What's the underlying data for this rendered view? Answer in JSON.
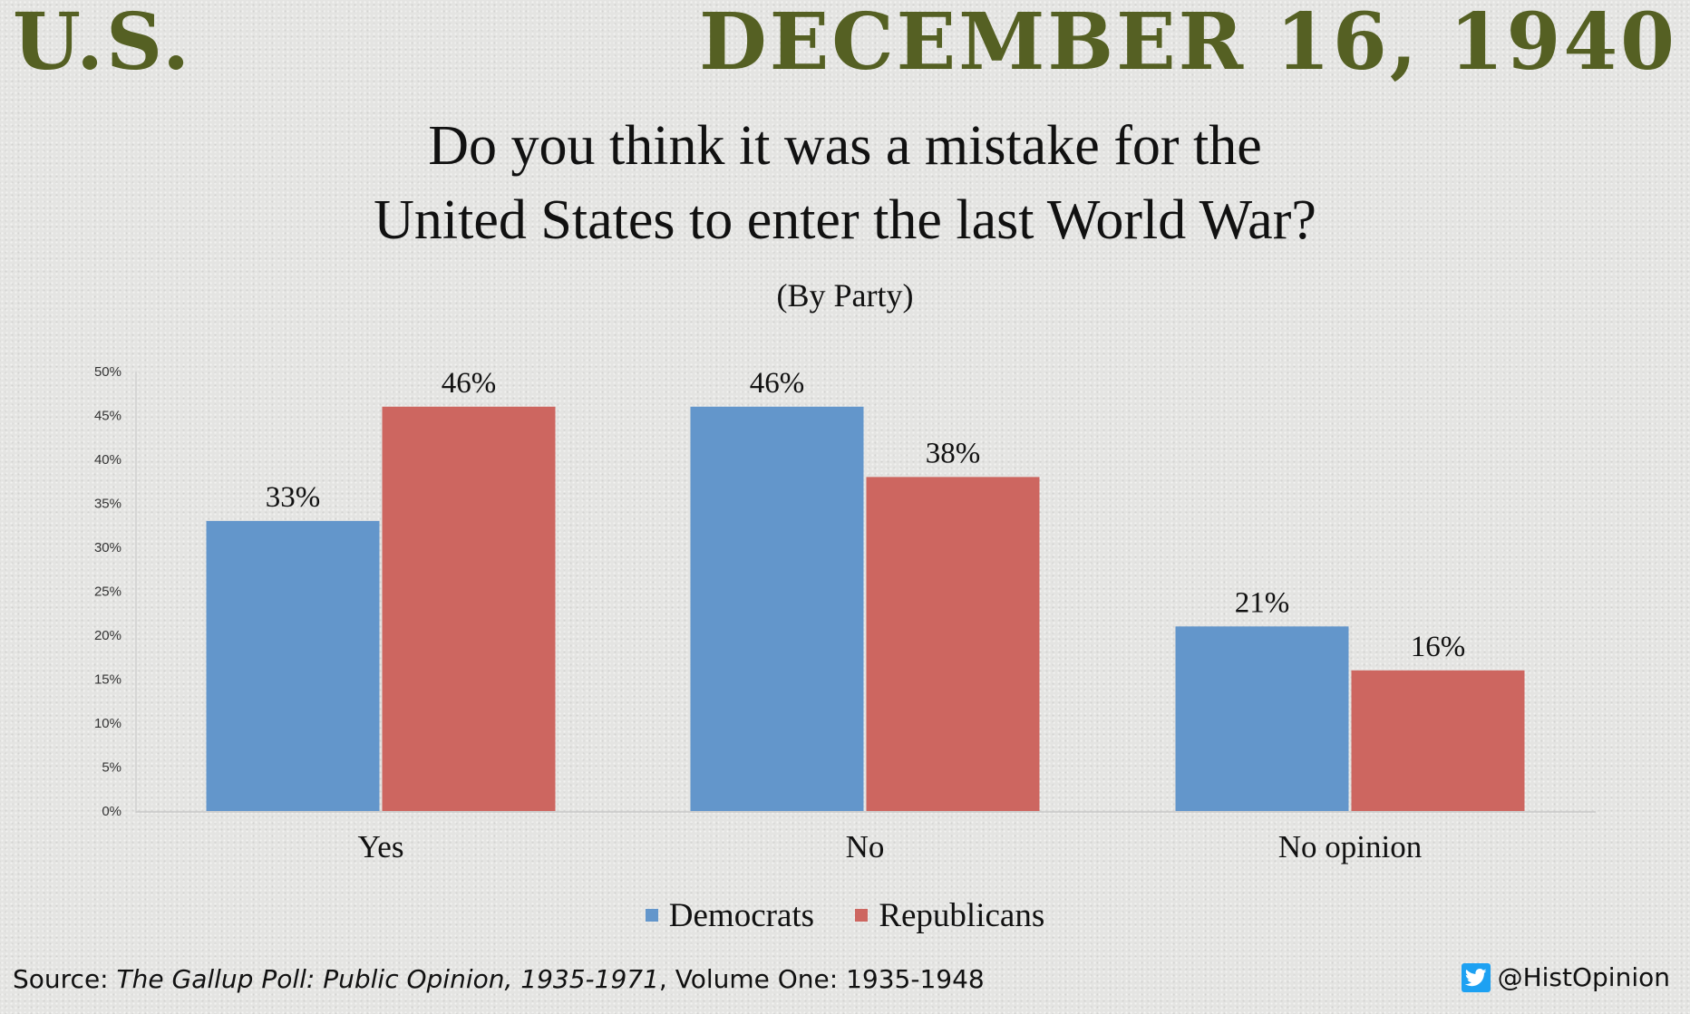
{
  "header": {
    "country": "U.S.",
    "date": "DECEMBER 16, 1940"
  },
  "chart_data": {
    "type": "bar",
    "title": "Do you think it was a mistake for the United States to enter the last World War?",
    "title_lines": [
      "Do you think it was a mistake for the",
      "United States to enter the last World War?"
    ],
    "subtitle": "(By Party)",
    "categories": [
      "Yes",
      "No",
      "No opinion"
    ],
    "series": [
      {
        "name": "Democrats",
        "color": "#6396cb",
        "values": [
          33,
          46,
          21
        ]
      },
      {
        "name": "Republicans",
        "color": "#cd6660",
        "values": [
          46,
          38,
          16
        ]
      }
    ],
    "ylim": [
      0,
      50
    ],
    "yticks": [
      0,
      5,
      10,
      15,
      20,
      25,
      30,
      35,
      40,
      45,
      50
    ],
    "value_format": "percent",
    "grid": false,
    "legend_position": "bottom"
  },
  "footer": {
    "source_label": "Source: ",
    "source_title": "The Gallup Poll: Public Opinion, 1935-1971",
    "source_rest": ", Volume One: 1935-1948",
    "handle": "@HistOpinion",
    "handle_icon": "twitter-icon"
  }
}
